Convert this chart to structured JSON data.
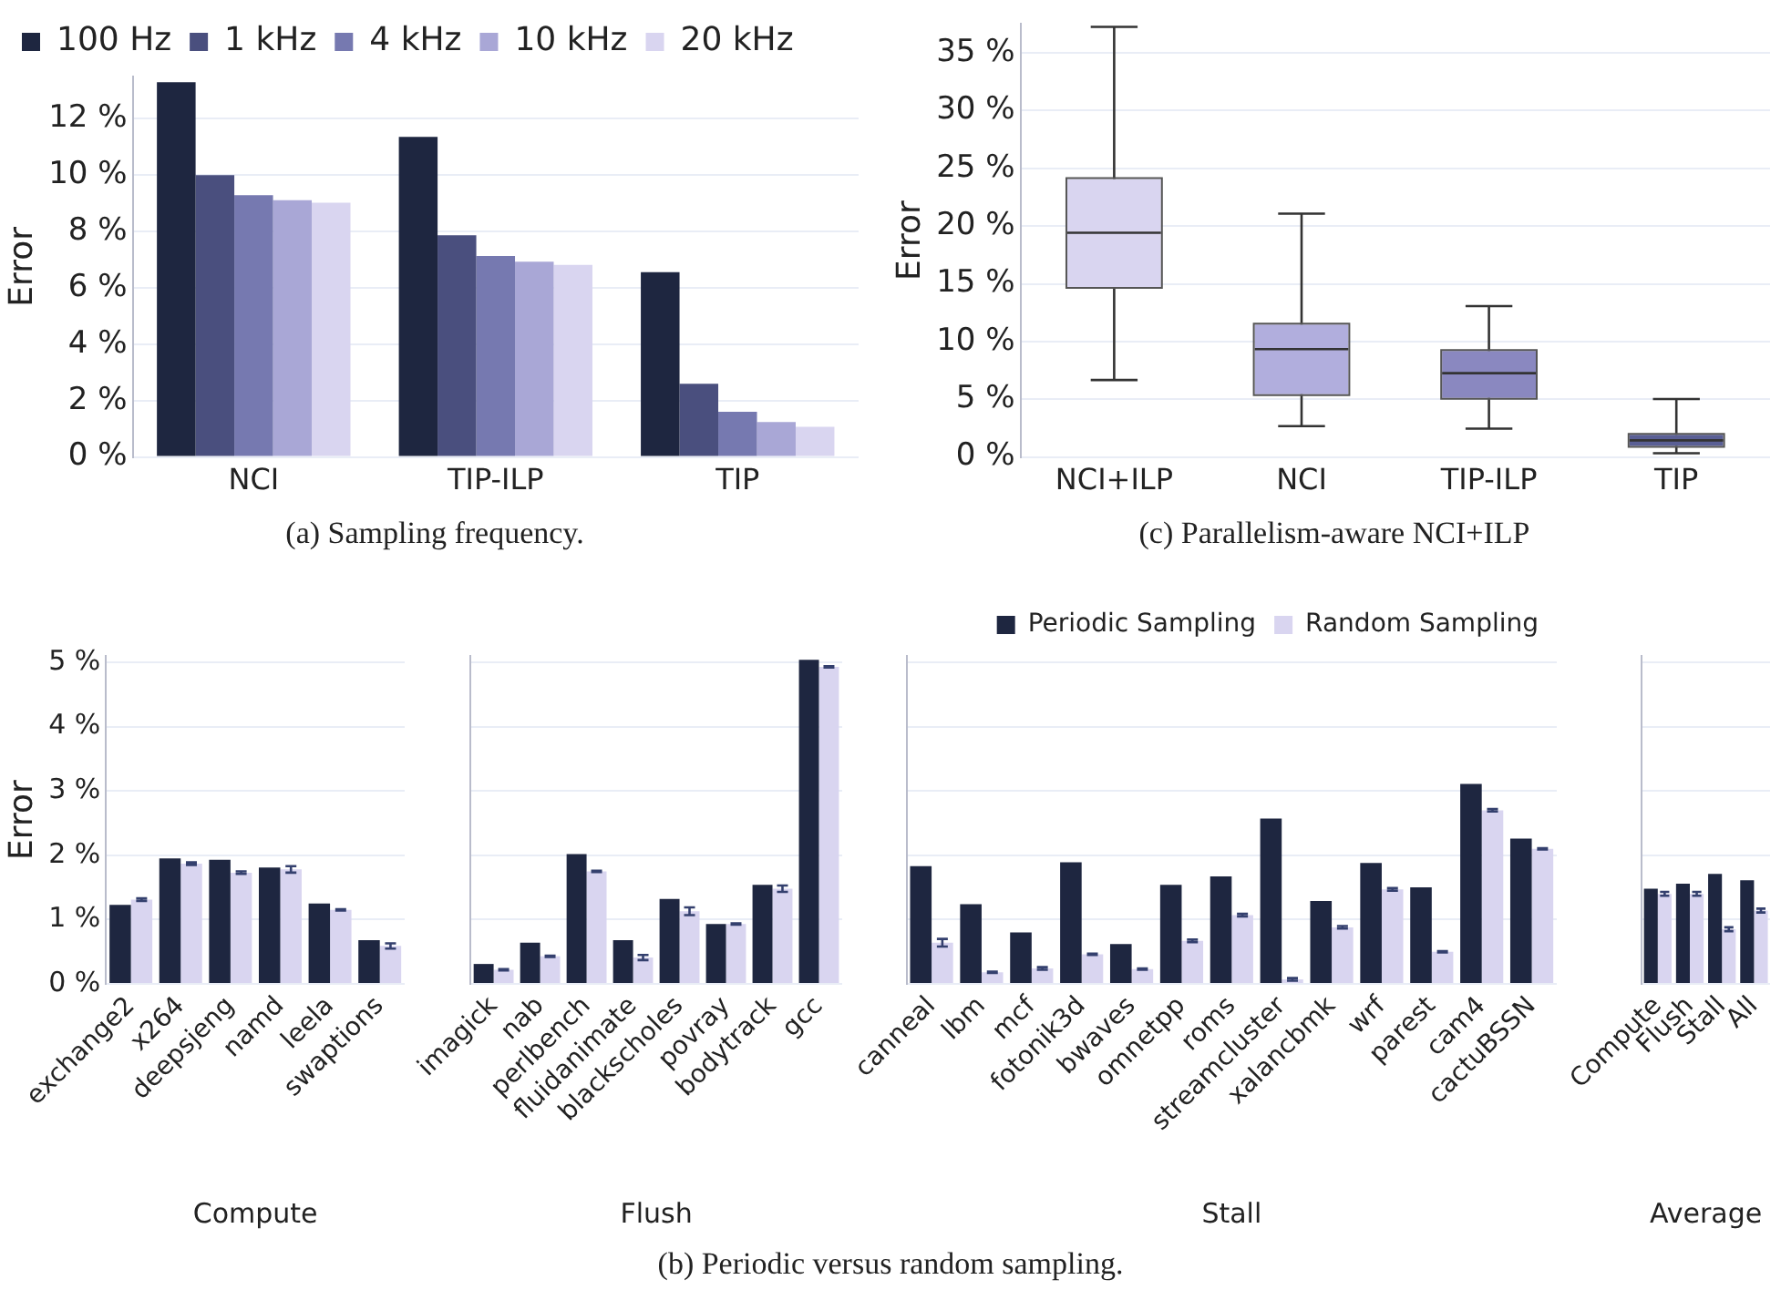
{
  "chart_data": [
    {
      "type": "bar",
      "ylabel": "Error",
      "categories": [
        "NCI",
        "TIP-ILP",
        "TIP"
      ],
      "series": [
        {
          "name": "100 Hz",
          "color": "#1e2640",
          "values": [
            13.3,
            11.36,
            6.56
          ]
        },
        {
          "name": "1 kHz",
          "color": "#4a4f7e",
          "values": [
            10.0,
            7.87,
            2.6
          ]
        },
        {
          "name": "4 kHz",
          "color": "#7679b0",
          "values": [
            9.29,
            7.13,
            1.6
          ]
        },
        {
          "name": "10 kHz",
          "color": "#a9a7d6",
          "values": [
            9.11,
            6.93,
            1.24
          ]
        },
        {
          "name": "20 kHz",
          "color": "#d9d5f0",
          "values": [
            9.02,
            6.82,
            1.07
          ]
        }
      ],
      "ylim": [
        0,
        13.5
      ],
      "yticks": [
        {
          "value": 0,
          "label": "0 %"
        },
        {
          "value": 2,
          "label": "2 %"
        },
        {
          "value": 4,
          "label": "4 %"
        },
        {
          "value": 6,
          "label": "6 %"
        },
        {
          "value": 8,
          "label": "8 %"
        },
        {
          "value": 10,
          "label": "10 %"
        },
        {
          "value": 12,
          "label": "12 %"
        }
      ],
      "grid": "y",
      "legend": "top left",
      "annotations": [
        "(a) Sampling frequency."
      ]
    },
    {
      "type": "box",
      "ylabel": "Error",
      "categories": [
        "NCI+ILP",
        "NCI",
        "TIP-ILP",
        "TIP"
      ],
      "boxes": [
        {
          "low": 6.67,
          "q1": 14.73,
          "median": 19.42,
          "q3": 24.07,
          "high": 37.25
        },
        {
          "low": 2.67,
          "q1": 5.44,
          "median": 9.34,
          "q3": 11.47,
          "high": 21.08
        },
        {
          "low": 2.45,
          "q1": 5.12,
          "median": 7.26,
          "q3": 9.18,
          "high": 13.07
        },
        {
          "low": 0.32,
          "q1": 0.96,
          "median": 1.44,
          "q3": 1.92,
          "high": 5.02
        }
      ],
      "colors": [
        "#d9d5f0",
        "#b1aedd",
        "#8a88c0",
        "#5a5f95"
      ],
      "ylim": [
        0,
        37.5
      ],
      "yticks": [
        {
          "value": 0,
          "label": "0 %"
        },
        {
          "value": 5,
          "label": "5 %"
        },
        {
          "value": 10,
          "label": "10 %"
        },
        {
          "value": 15,
          "label": "15 %"
        },
        {
          "value": 20,
          "label": "20 %"
        },
        {
          "value": 25,
          "label": "25 %"
        },
        {
          "value": 30,
          "label": "30 %"
        },
        {
          "value": 35,
          "label": "35 %"
        }
      ],
      "grid": "y",
      "annotations": [
        "(c) Parallelism-aware NCI+ILP"
      ]
    },
    {
      "type": "bar",
      "ylabel": "Error",
      "xlabel": "Compute",
      "categories": [
        "exchange2",
        "x264",
        "deepsjeng",
        "namd",
        "leela",
        "swaptions"
      ],
      "series": [
        {
          "color": "#1e2640",
          "values": [
            1.23,
            1.95,
            1.93,
            1.81,
            1.25,
            0.68
          ]
        },
        {
          "color": "#d9d5f0",
          "values": [
            1.31,
            1.87,
            1.73,
            1.78,
            1.15,
            0.59
          ],
          "errors": [
            0.02,
            0.02,
            0.02,
            0.05,
            0.01,
            0.04
          ]
        }
      ],
      "ylim": [
        0,
        5.1
      ],
      "yticks": [
        {
          "value": 0,
          "label": "0 %"
        },
        {
          "value": 1,
          "label": "1 %"
        },
        {
          "value": 2,
          "label": "2 %"
        },
        {
          "value": 3,
          "label": "3 %"
        },
        {
          "value": 4,
          "label": "4 %"
        },
        {
          "value": 5,
          "label": "5 %"
        }
      ],
      "grid": "y",
      "annotations": [
        "(b) Periodic versus random sampling."
      ]
    },
    {
      "type": "bar",
      "xlabel": "Flush",
      "categories": [
        "imagick",
        "nab",
        "perlbench",
        "fluidanimate",
        "blackscholes",
        "povray",
        "bodytrack",
        "gcc"
      ],
      "series": [
        {
          "color": "#1e2640",
          "values": [
            0.31,
            0.64,
            2.02,
            0.68,
            1.32,
            0.93,
            1.54,
            5.04
          ]
        },
        {
          "color": "#d9d5f0",
          "values": [
            0.22,
            0.43,
            1.75,
            0.41,
            1.13,
            0.93,
            1.48,
            4.93
          ],
          "errors": [
            0.01,
            0.01,
            0.01,
            0.04,
            0.06,
            0.01,
            0.05,
            0.01
          ]
        }
      ],
      "ylim": [
        0,
        5.1
      ],
      "yticks": [
        0,
        1,
        2,
        3,
        4,
        5
      ],
      "grid": "y",
      "tick_labels": "x"
    },
    {
      "type": "bar",
      "xlabel": "Stall",
      "categories": [
        "canneal",
        "lbm",
        "mcf",
        "fotonik3d",
        "bwaves",
        "omnetpp",
        "roms",
        "streamcluster",
        "xalancbmk",
        "wrf",
        "parest",
        "cam4",
        "cactuBSSN"
      ],
      "series": [
        {
          "name": "Periodic Sampling",
          "color": "#1e2640",
          "values": [
            1.83,
            1.24,
            0.8,
            1.89,
            0.62,
            1.54,
            1.67,
            2.57,
            1.29,
            1.88,
            1.5,
            3.11,
            2.26
          ]
        },
        {
          "name": "Random Sampling",
          "color": "#d9d5f0",
          "values": [
            0.64,
            0.18,
            0.24,
            0.46,
            0.23,
            0.67,
            1.07,
            0.07,
            0.88,
            1.47,
            0.5,
            2.7,
            2.1
          ],
          "errors": [
            0.06,
            0.01,
            0.02,
            0.01,
            0.01,
            0.02,
            0.02,
            0.02,
            0.02,
            0.02,
            0.01,
            0.02,
            0.01
          ]
        }
      ],
      "ylim": [
        0,
        5.1
      ],
      "yticks": [
        0,
        1,
        2,
        3,
        4,
        5
      ],
      "grid": "y",
      "tick_labels": "x",
      "legend": "top right"
    },
    {
      "type": "bar",
      "xlabel": "Average",
      "categories": [
        "Compute",
        "Flush",
        "Stall",
        "All"
      ],
      "series": [
        {
          "color": "#1e2640",
          "values": [
            1.48,
            1.56,
            1.71,
            1.61
          ]
        },
        {
          "color": "#d9d5f0",
          "values": [
            1.4,
            1.4,
            0.85,
            1.14
          ],
          "errors": [
            0.03,
            0.03,
            0.03,
            0.03
          ]
        }
      ],
      "ylim": [
        0,
        5.1
      ],
      "yticks": [
        0,
        1,
        2,
        3,
        4,
        5
      ],
      "grid": "y",
      "tick_labels": "x"
    }
  ]
}
